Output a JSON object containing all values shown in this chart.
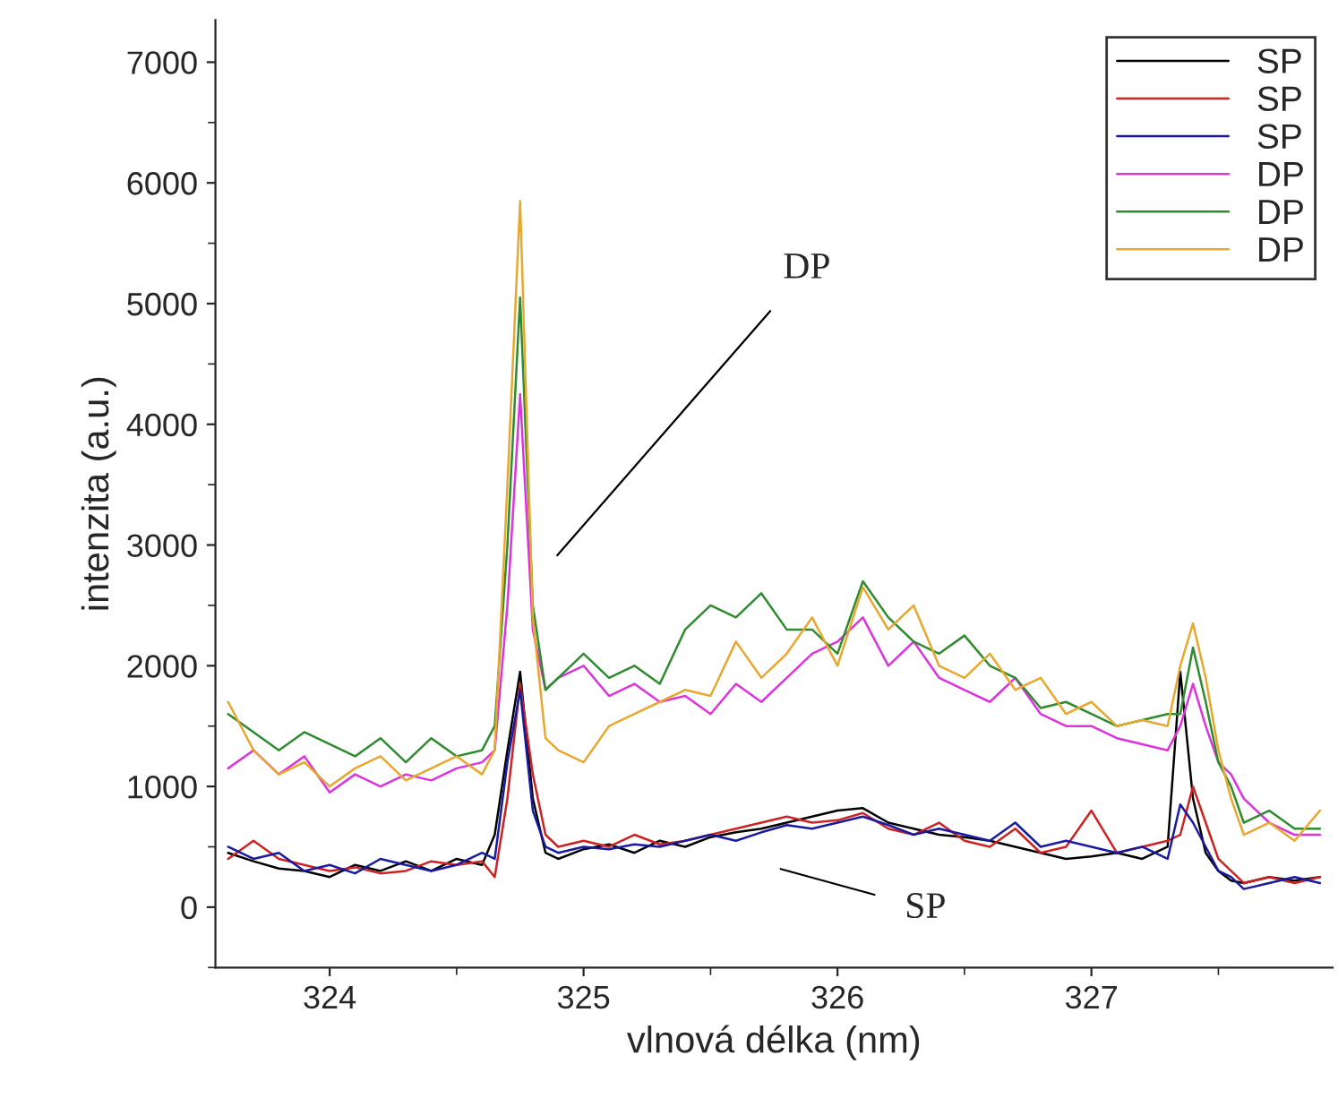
{
  "chart_data": {
    "type": "line",
    "xlabel": "vlnová délka (nm)",
    "ylabel": "intenzita (a.u.)",
    "xlim": [
      323.55,
      327.95
    ],
    "xticks": [
      324,
      325,
      326,
      327
    ],
    "ylim": [
      -500,
      7350
    ],
    "yticks": [
      0,
      1000,
      2000,
      3000,
      4000,
      5000,
      6000,
      7000
    ],
    "grid": false,
    "legend": "top right",
    "line_style": "solid",
    "marker": "none",
    "x": [
      323.6,
      323.7,
      323.8,
      323.9,
      324.0,
      324.1,
      324.2,
      324.3,
      324.4,
      324.5,
      324.6,
      324.65,
      324.7,
      324.75,
      324.8,
      324.85,
      324.9,
      325.0,
      325.1,
      325.2,
      325.3,
      325.4,
      325.5,
      325.6,
      325.7,
      325.8,
      325.9,
      326.0,
      326.1,
      326.2,
      326.3,
      326.4,
      326.5,
      326.6,
      326.7,
      326.8,
      326.9,
      327.0,
      327.1,
      327.2,
      327.3,
      327.35,
      327.4,
      327.45,
      327.5,
      327.55,
      327.6,
      327.7,
      327.8,
      327.9
    ],
    "series": [
      {
        "name": "SP",
        "color": "#000000",
        "values": [
          450,
          380,
          320,
          300,
          250,
          350,
          300,
          380,
          300,
          400,
          350,
          600,
          1300,
          1950,
          900,
          450,
          400,
          480,
          520,
          450,
          550,
          500,
          580,
          620,
          650,
          700,
          750,
          800,
          820,
          700,
          650,
          600,
          580,
          550,
          500,
          450,
          400,
          420,
          450,
          400,
          500,
          1950,
          900,
          450,
          300,
          220,
          200,
          250,
          220,
          250
        ]
      },
      {
        "name": "SP",
        "color": "#cc2222",
        "values": [
          400,
          550,
          400,
          350,
          300,
          330,
          280,
          300,
          380,
          350,
          380,
          250,
          900,
          1850,
          1100,
          600,
          500,
          550,
          500,
          600,
          520,
          550,
          600,
          650,
          700,
          750,
          700,
          720,
          780,
          650,
          600,
          700,
          550,
          500,
          650,
          450,
          500,
          800,
          450,
          500,
          550,
          600,
          1000,
          700,
          400,
          300,
          200,
          250,
          200,
          250
        ]
      },
      {
        "name": "SP",
        "color": "#1a1aa0",
        "values": [
          500,
          400,
          450,
          300,
          350,
          280,
          400,
          350,
          300,
          350,
          450,
          400,
          1200,
          1800,
          800,
          500,
          450,
          500,
          480,
          520,
          500,
          550,
          600,
          550,
          620,
          680,
          650,
          700,
          750,
          680,
          600,
          650,
          600,
          550,
          700,
          500,
          550,
          500,
          450,
          500,
          400,
          850,
          700,
          500,
          300,
          250,
          150,
          200,
          250,
          200
        ]
      },
      {
        "name": "DP",
        "color": "#dd33dd",
        "values": [
          1150,
          1300,
          1100,
          1250,
          950,
          1100,
          1000,
          1100,
          1050,
          1150,
          1200,
          1300,
          2500,
          4250,
          2300,
          1800,
          1900,
          2000,
          1750,
          1850,
          1700,
          1750,
          1600,
          1850,
          1700,
          1900,
          2100,
          2200,
          2400,
          2000,
          2200,
          1900,
          1800,
          1700,
          1900,
          1600,
          1500,
          1500,
          1400,
          1350,
          1300,
          1500,
          1850,
          1500,
          1200,
          1100,
          900,
          700,
          600,
          600
        ]
      },
      {
        "name": "DP",
        "color": "#2e8b2e",
        "values": [
          1600,
          1450,
          1300,
          1450,
          1350,
          1250,
          1400,
          1200,
          1400,
          1250,
          1300,
          1500,
          3000,
          5050,
          2500,
          1800,
          1900,
          2100,
          1900,
          2000,
          1850,
          2300,
          2500,
          2400,
          2600,
          2300,
          2300,
          2100,
          2700,
          2400,
          2200,
          2100,
          2250,
          2000,
          1900,
          1650,
          1700,
          1600,
          1500,
          1550,
          1600,
          1600,
          2150,
          1700,
          1200,
          1000,
          700,
          800,
          650,
          650
        ]
      },
      {
        "name": "DP",
        "color": "#e8a830",
        "values": [
          1700,
          1300,
          1100,
          1200,
          1000,
          1150,
          1250,
          1050,
          1150,
          1250,
          1100,
          1300,
          3500,
          5850,
          2400,
          1400,
          1300,
          1200,
          1500,
          1600,
          1700,
          1800,
          1750,
          2200,
          1900,
          2100,
          2400,
          2000,
          2650,
          2300,
          2500,
          2000,
          1900,
          2100,
          1800,
          1900,
          1600,
          1700,
          1500,
          1550,
          1500,
          2000,
          2350,
          1900,
          1300,
          900,
          600,
          700,
          550,
          800
        ]
      }
    ],
    "annotations": [
      "DP",
      "SP"
    ]
  }
}
